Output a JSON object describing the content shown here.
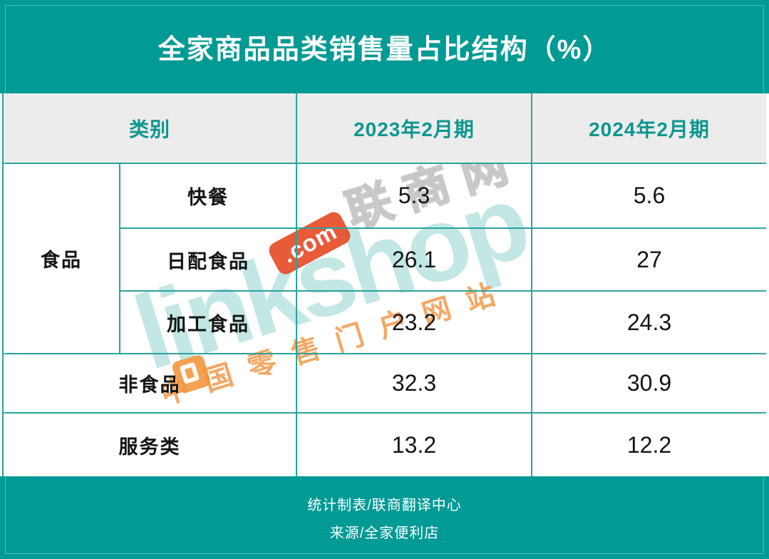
{
  "title": "全家商品品类销售量占比结构（%）",
  "table": {
    "header": {
      "category": "类别",
      "p2023": "2023年2月期",
      "p2024": "2024年2月期"
    },
    "food_group_label": "食品",
    "rows": [
      {
        "label": "快餐",
        "v2023": "5.3",
        "v2024": "5.6"
      },
      {
        "label": "日配食品",
        "v2023": "26.1",
        "v2024": "27"
      },
      {
        "label": "加工食品",
        "v2023": "23.2",
        "v2024": "24.3"
      },
      {
        "label": "非食品",
        "v2023": "32.3",
        "v2024": "30.9"
      },
      {
        "label": "服务类",
        "v2023": "13.2",
        "v2024": "12.2"
      }
    ]
  },
  "footer": {
    "line1": "统计制表/联商翻译中心",
    "line2": "来源/全家便利店"
  },
  "watermark": {
    "brand": "linkshop",
    "com": ".com",
    "site_name": "联商网",
    "tagline": "中国零售门户网站"
  },
  "colors": {
    "teal": "#019a94",
    "grid_line": "#2aa39d",
    "header_bg": "#ececec",
    "header_text": "#0e968f",
    "watermark_teal": "rgba(1,154,148,0.24)",
    "watermark_orange": "#e54d28"
  },
  "chart_data": {
    "type": "table",
    "title": "全家商品品类销售量占比结构（%）",
    "columns": [
      "类别",
      "2023年2月期",
      "2024年2月期"
    ],
    "categories": [
      "快餐",
      "日配食品",
      "加工食品",
      "非食品",
      "服务类"
    ],
    "category_groups": {
      "食品": [
        "快餐",
        "日配食品",
        "加工食品"
      ]
    },
    "series": [
      {
        "name": "2023年2月期",
        "values": [
          5.3,
          26.1,
          23.2,
          32.3,
          13.2
        ]
      },
      {
        "name": "2024年2月期",
        "values": [
          5.6,
          27,
          24.3,
          30.9,
          12.2
        ]
      }
    ],
    "source_notes": [
      "统计制表/联商翻译中心",
      "来源/全家便利店"
    ]
  }
}
